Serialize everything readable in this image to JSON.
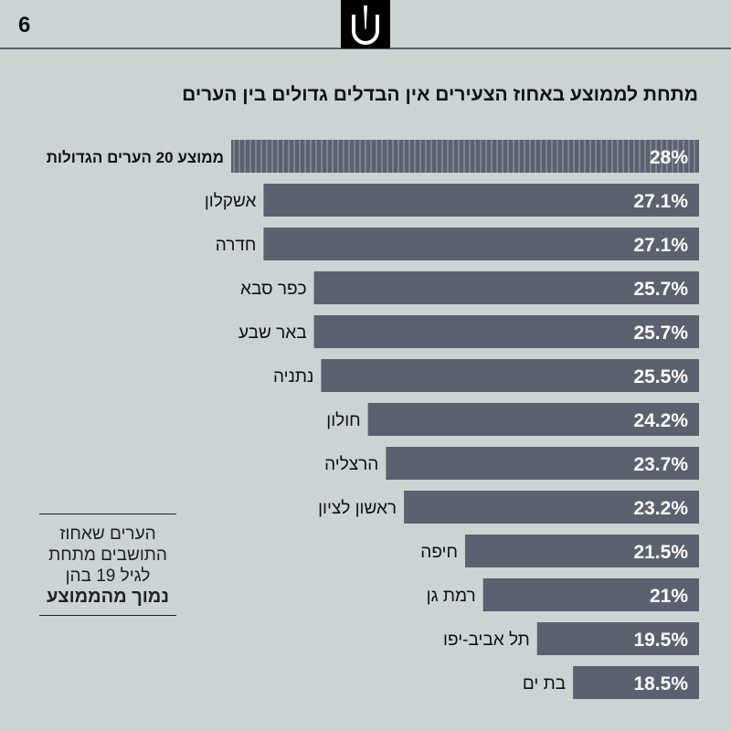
{
  "page_number": "6",
  "logo": {
    "icon": "u-with-spike-logo"
  },
  "note": {
    "lines": [
      "הערים שאחוז",
      "התושבים מתחת",
      "לגיל 19 בהן"
    ],
    "bold_line": "נמוך מהממוצע"
  },
  "colors": {
    "bar": "#5c616f",
    "average_bar": "#5c616f",
    "stripe": "#7d8391",
    "background": "#cbd4d3"
  },
  "chart_data": {
    "type": "bar",
    "orientation": "horizontal",
    "title": "מתחת לממוצע באחוז הצעירים אין הבדלים גדולים בין הערים",
    "xlabel": "",
    "ylabel": "",
    "xlim": [
      15,
      28
    ],
    "grid": false,
    "categories": [
      "ממוצע 20 הערים הגדולות",
      "אשקלון",
      "חדרה",
      "כפר סבא",
      "באר שבע",
      "נתניה",
      "חולון",
      "הרצליה",
      "ראשון לציון",
      "חיפה",
      "רמת גן",
      "תל אביב-יפו",
      "בת ים"
    ],
    "values": [
      28,
      27.1,
      27.1,
      25.7,
      25.7,
      25.5,
      24.2,
      23.7,
      23.2,
      21.5,
      21,
      19.5,
      18.5
    ],
    "labels": [
      "28%",
      "27.1%",
      "27.1%",
      "25.7%",
      "25.7%",
      "25.5%",
      "24.2%",
      "23.7%",
      "23.2%",
      "21.5%",
      "21%",
      "19.5%",
      "18.5%"
    ],
    "highlight_index": 0
  }
}
